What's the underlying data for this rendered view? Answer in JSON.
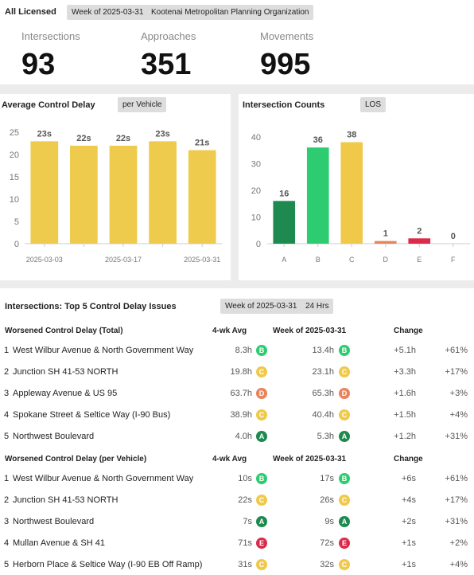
{
  "header": {
    "label": "All Licensed",
    "filters": [
      "Week of 2025-03-31",
      "Kootenai Metropolitan Planning Organization"
    ]
  },
  "kpis": [
    {
      "label": "Intersections",
      "value": 93
    },
    {
      "label": "Approaches",
      "value": 351
    },
    {
      "label": "Movements",
      "value": 995
    }
  ],
  "chart_data": [
    {
      "type": "bar",
      "title": "Average Control Delay",
      "toggle": "per Vehicle",
      "categories": [
        "2025-03-03",
        null,
        "2025-03-17",
        null,
        "2025-03-31"
      ],
      "values": [
        23,
        22,
        22,
        23,
        21
      ],
      "value_labels": [
        "23s",
        "22s",
        "22s",
        "23s",
        "21s"
      ],
      "color": "#eecb4c",
      "ylim": [
        0,
        27
      ],
      "yticks": [
        0,
        5,
        10,
        15,
        20,
        25
      ],
      "grid": false
    },
    {
      "type": "bar",
      "title": "Intersection Counts",
      "toggle": "LOS",
      "categories": [
        "A",
        "B",
        "C",
        "D",
        "E",
        "F"
      ],
      "values": [
        16,
        36,
        38,
        1,
        2,
        0
      ],
      "colors": [
        "#1f8a4f",
        "#2ecc71",
        "#f0c94a",
        "#e8845c",
        "#dc2a4a",
        "#999999"
      ],
      "ylim": [
        0,
        45
      ],
      "yticks": [
        0,
        10,
        20,
        30,
        40
      ],
      "grid": false
    }
  ],
  "table": {
    "title": "Intersections: Top 5 Control Delay Issues",
    "filters": [
      "Week of 2025-03-31",
      "24 Hrs"
    ],
    "grade_colors": {
      "A": "#1f8a4f",
      "B": "#2ecc71",
      "C": "#f0c94a",
      "D": "#e8845c",
      "E": "#dc2a4a"
    },
    "sections": [
      {
        "columns": [
          "Worsened Control Delay (Total)",
          "4-wk Avg",
          "Week of 2025-03-31",
          "Change"
        ],
        "rows": [
          [
            "1",
            "West Wilbur Avenue & North Government Way",
            "8.3h",
            "B",
            "13.4h",
            "B",
            "+5.1h",
            "+61%"
          ],
          [
            "2",
            "Junction SH 41-53 NORTH",
            "19.8h",
            "C",
            "23.1h",
            "C",
            "+3.3h",
            "+17%"
          ],
          [
            "3",
            "Appleway Avenue & US 95",
            "63.7h",
            "D",
            "65.3h",
            "D",
            "+1.6h",
            "+3%"
          ],
          [
            "4",
            "Spokane Street & Seltice Way (I-90 Bus)",
            "38.9h",
            "C",
            "40.4h",
            "C",
            "+1.5h",
            "+4%"
          ],
          [
            "5",
            "Northwest Boulevard",
            "4.0h",
            "A",
            "5.3h",
            "A",
            "+1.2h",
            "+31%"
          ]
        ]
      },
      {
        "columns": [
          "Worsened Control Delay (per Vehicle)",
          "4-wk Avg",
          "Week of 2025-03-31",
          "Change"
        ],
        "rows": [
          [
            "1",
            "West Wilbur Avenue & North Government Way",
            "10s",
            "B",
            "17s",
            "B",
            "+6s",
            "+61%"
          ],
          [
            "2",
            "Junction SH 41-53 NORTH",
            "22s",
            "C",
            "26s",
            "C",
            "+4s",
            "+17%"
          ],
          [
            "3",
            "Northwest Boulevard",
            "7s",
            "A",
            "9s",
            "A",
            "+2s",
            "+31%"
          ],
          [
            "4",
            "Mullan Avenue & SH 41",
            "71s",
            "E",
            "72s",
            "E",
            "+1s",
            "+2%"
          ],
          [
            "5",
            "Herborn Place & Seltice Way (I-90 EB Off Ramp)",
            "31s",
            "C",
            "32s",
            "C",
            "+1s",
            "+4%"
          ]
        ]
      }
    ]
  }
}
